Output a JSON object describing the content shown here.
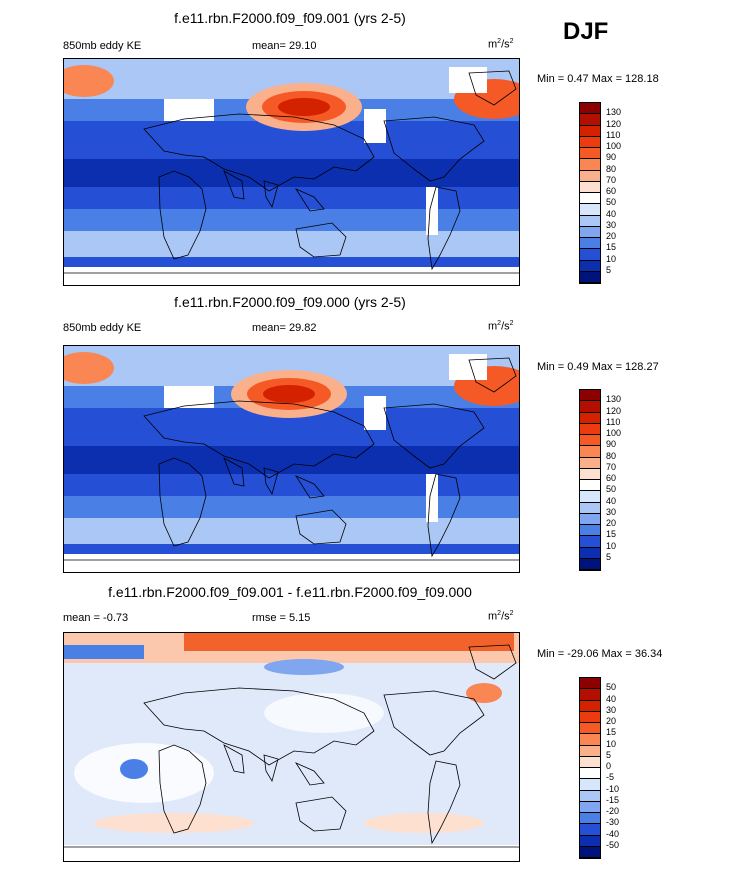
{
  "season": "DJF",
  "unit_base": "m",
  "unit_sup": "2",
  "unit_mid": "/s",
  "unit_sup2": "2",
  "panels": [
    {
      "title": "f.e11.rbn.F2000.f09_f09.001 (yrs 2-5)",
      "left_label": "850mb eddy KE",
      "center_label": "mean=  29.10",
      "min_max": "Min =   0.47 Max = 128.18",
      "colorbar_labels": [
        "130",
        "120",
        "110",
        "100",
        "90",
        "80",
        "70",
        "60",
        "50",
        "40",
        "30",
        "20",
        "15",
        "10",
        "5"
      ],
      "colorbar_colors": [
        "#8b0000",
        "#b30f00",
        "#d42200",
        "#ec3c0f",
        "#f55a26",
        "#f98653",
        "#fbb08c",
        "#fde0cf",
        "#ffffff",
        "#d6e6fb",
        "#aac7f5",
        "#7fa6ee",
        "#4a7fe6",
        "#2550d6",
        "#0c2fb0",
        "#00137a"
      ]
    },
    {
      "title": "f.e11.rbn.F2000.f09_f09.000 (yrs 2-5)",
      "left_label": "850mb eddy KE",
      "center_label": "mean=  29.82",
      "min_max": "Min =   0.49 Max = 128.27",
      "colorbar_labels": [
        "130",
        "120",
        "110",
        "100",
        "90",
        "80",
        "70",
        "60",
        "50",
        "40",
        "30",
        "20",
        "15",
        "10",
        "5"
      ],
      "colorbar_colors": [
        "#8b0000",
        "#b30f00",
        "#d42200",
        "#ec3c0f",
        "#f55a26",
        "#f98653",
        "#fbb08c",
        "#fde0cf",
        "#ffffff",
        "#d6e6fb",
        "#aac7f5",
        "#7fa6ee",
        "#4a7fe6",
        "#2550d6",
        "#0c2fb0",
        "#00137a"
      ]
    },
    {
      "title": "f.e11.rbn.F2000.f09_f09.001 - f.e11.rbn.F2000.f09_f09.000",
      "left_label": "mean =  -0.73",
      "center_label": "rmse =   5.15",
      "min_max": "Min = -29.06 Max =  36.34",
      "colorbar_labels": [
        "50",
        "40",
        "30",
        "20",
        "15",
        "10",
        "5",
        "0",
        "-5",
        "-10",
        "-15",
        "-20",
        "-30",
        "-40",
        "-50"
      ],
      "colorbar_colors": [
        "#8b0000",
        "#b30f00",
        "#d42200",
        "#ec3c0f",
        "#f55a26",
        "#f98653",
        "#fbb08c",
        "#fde0cf",
        "#ffffff",
        "#d6e6fb",
        "#aac7f5",
        "#7fa6ee",
        "#4a7fe6",
        "#2550d6",
        "#0c2fb0",
        "#00137a"
      ]
    }
  ]
}
